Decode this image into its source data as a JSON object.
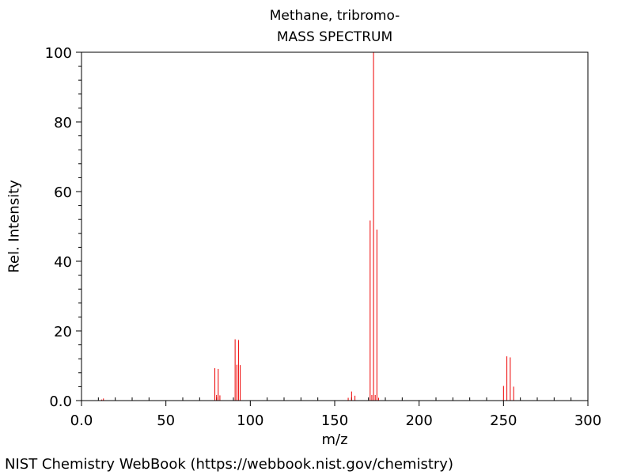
{
  "chart_data": {
    "type": "bar",
    "title": "Methane, tribromo-",
    "subtitle": "MASS SPECTRUM",
    "xlabel": "m/z",
    "ylabel": "Rel. Intensity",
    "xlim": [
      0,
      300
    ],
    "ylim": [
      0,
      100
    ],
    "x_ticks": [
      {
        "value": 0,
        "label": "0.0"
      },
      {
        "value": 50,
        "label": "50"
      },
      {
        "value": 100,
        "label": "100"
      },
      {
        "value": 150,
        "label": "150"
      },
      {
        "value": 200,
        "label": "200"
      },
      {
        "value": 250,
        "label": "250"
      },
      {
        "value": 300,
        "label": "300"
      }
    ],
    "y_ticks": [
      {
        "value": 0,
        "label": "0.0"
      },
      {
        "value": 20,
        "label": "20"
      },
      {
        "value": 40,
        "label": "40"
      },
      {
        "value": 60,
        "label": "60"
      },
      {
        "value": 80,
        "label": "80"
      },
      {
        "value": 100,
        "label": "100"
      }
    ],
    "grid": false,
    "series": [
      {
        "name": "Methane, tribromo- mass spectrum",
        "color": "#ee0000",
        "peaks": [
          {
            "mz": 12,
            "intensity": 0.3
          },
          {
            "mz": 13,
            "intensity": 0.6
          },
          {
            "mz": 79,
            "intensity": 9.3
          },
          {
            "mz": 80,
            "intensity": 1.6
          },
          {
            "mz": 81,
            "intensity": 9.1
          },
          {
            "mz": 82,
            "intensity": 1.5
          },
          {
            "mz": 91,
            "intensity": 17.6
          },
          {
            "mz": 92,
            "intensity": 10.3
          },
          {
            "mz": 93,
            "intensity": 17.4
          },
          {
            "mz": 94,
            "intensity": 10.2
          },
          {
            "mz": 158,
            "intensity": 0.8
          },
          {
            "mz": 160,
            "intensity": 2.6
          },
          {
            "mz": 162,
            "intensity": 1.4
          },
          {
            "mz": 171,
            "intensity": 51.7
          },
          {
            "mz": 172,
            "intensity": 1.6
          },
          {
            "mz": 173,
            "intensity": 100
          },
          {
            "mz": 174,
            "intensity": 1.6
          },
          {
            "mz": 175,
            "intensity": 49.1
          },
          {
            "mz": 176,
            "intensity": 0.8
          },
          {
            "mz": 250,
            "intensity": 4.2
          },
          {
            "mz": 252,
            "intensity": 12.7
          },
          {
            "mz": 254,
            "intensity": 12.4
          },
          {
            "mz": 256,
            "intensity": 4.0
          }
        ]
      }
    ]
  },
  "footer": "NIST Chemistry WebBook (https://webbook.nist.gov/chemistry)"
}
